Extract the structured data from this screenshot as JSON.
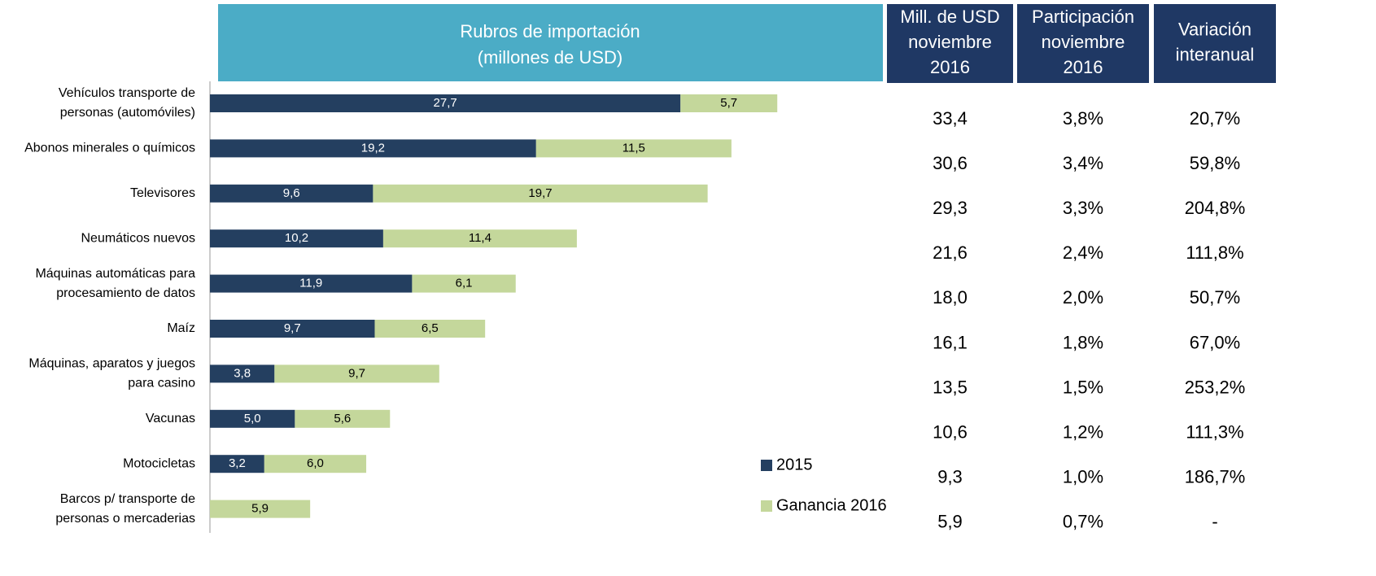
{
  "chart_data": {
    "type": "bar",
    "orientation": "horizontal",
    "stacked": true,
    "title": [
      "Rubros de importación",
      "(millones de USD)"
    ],
    "categories": [
      [
        "Vehículos transporte de",
        "personas (automóviles)"
      ],
      [
        "Abonos minerales o químicos"
      ],
      [
        "Televisores"
      ],
      [
        "Neumáticos nuevos"
      ],
      [
        "Máquinas automáticas para",
        "procesamiento de datos"
      ],
      [
        "Maíz"
      ],
      [
        "Máquinas, aparatos y juegos",
        "para casino"
      ],
      [
        "Vacunas"
      ],
      [
        "Motocicletas"
      ],
      [
        "Barcos p/ transporte de",
        "personas o mercaderias"
      ]
    ],
    "series": [
      {
        "name": "2015",
        "color": "#243f60",
        "values": [
          27.7,
          19.2,
          9.6,
          10.2,
          11.9,
          9.7,
          3.8,
          5.0,
          3.2,
          null
        ],
        "value_labels": [
          "27,7",
          "19,2",
          "9,6",
          "10,2",
          "11,9",
          "9,7",
          "3,8",
          "5,0",
          "3,2",
          null
        ]
      },
      {
        "name": "Ganancia 2016",
        "color": "#c4d79b",
        "values": [
          5.7,
          11.5,
          19.7,
          11.4,
          6.1,
          6.5,
          9.7,
          5.6,
          6.0,
          5.9
        ],
        "value_labels": [
          "5,7",
          "11,5",
          "19,7",
          "11,4",
          "6,1",
          "6,5",
          "9,7",
          "5,6",
          "6,0",
          "5,9"
        ]
      }
    ],
    "xlim": [
      0,
      40
    ],
    "legend": "bottom-right"
  },
  "table": {
    "headers": [
      [
        "Mill. de USD",
        "noviembre",
        "2016"
      ],
      [
        "Participación",
        "noviembre",
        "2016"
      ],
      [
        "Variación",
        "interanual"
      ]
    ],
    "rows": [
      [
        "33,4",
        "3,8%",
        "20,7%"
      ],
      [
        "30,6",
        "3,4%",
        "59,8%"
      ],
      [
        "29,3",
        "3,3%",
        "204,8%"
      ],
      [
        "21,6",
        "2,4%",
        "111,8%"
      ],
      [
        "18,0",
        "2,0%",
        "50,7%"
      ],
      [
        "16,1",
        "1,8%",
        "67,0%"
      ],
      [
        "13,5",
        "1,5%",
        "253,2%"
      ],
      [
        "10,6",
        "1,2%",
        "111,3%"
      ],
      [
        "9,3",
        "1,0%",
        "186,7%"
      ],
      [
        "5,9",
        "0,7%",
        "-"
      ]
    ]
  }
}
